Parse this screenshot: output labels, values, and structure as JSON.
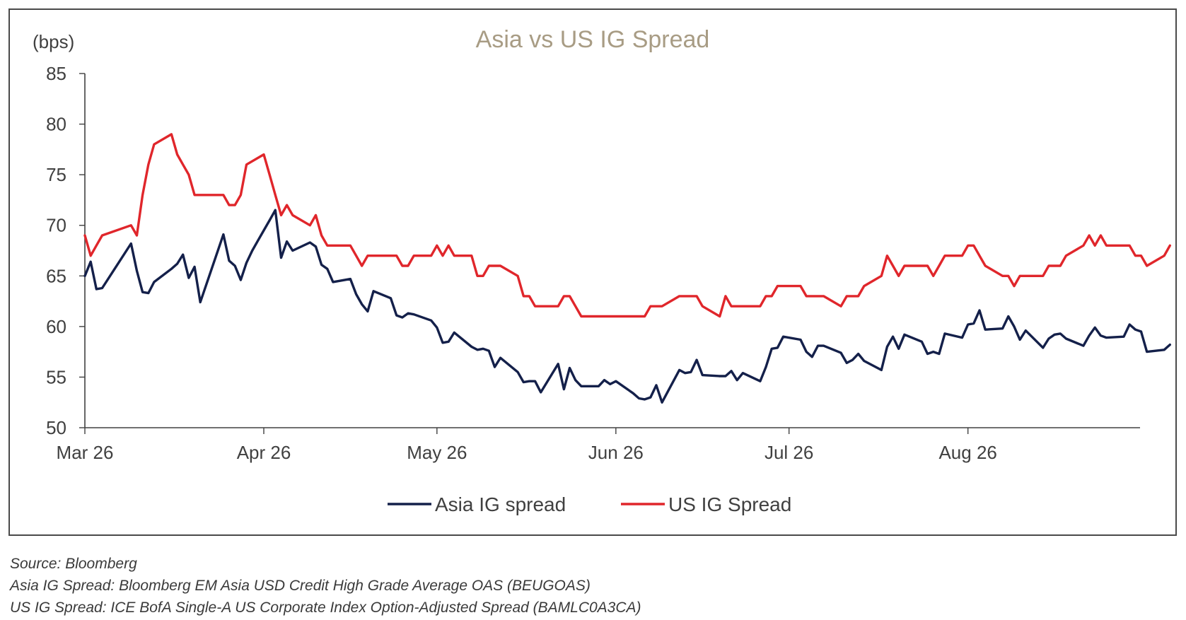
{
  "chart_data": {
    "type": "line",
    "title": "Asia vs US IG Spread",
    "ylabel": "(bps)",
    "xlabel": "",
    "ylim": [
      50,
      85
    ],
    "yticks": [
      "50",
      "55",
      "60",
      "65",
      "70",
      "75",
      "80",
      "85"
    ],
    "x_ticks": [
      {
        "label": "Mar 26",
        "date": "2026-03-01"
      },
      {
        "label": "Apr 26",
        "date": "2026-04-01"
      },
      {
        "label": "May 26",
        "date": "2026-05-01"
      },
      {
        "label": "Jun 26",
        "date": "2026-06-01"
      },
      {
        "label": "Jul 26",
        "date": "2026-07-01"
      },
      {
        "label": "Aug 26",
        "date": "2026-08-01"
      }
    ],
    "xlim": [
      "2026-03-01",
      "2026-08-30"
    ],
    "grid": false,
    "legend_position": "bottom",
    "series": [
      {
        "name": "Asia IG spread",
        "color": "#14204a",
        "points": [
          [
            "2026-03-01",
            65.0
          ],
          [
            "2026-03-02",
            66.4
          ],
          [
            "2026-03-03",
            63.7
          ],
          [
            "2026-03-04",
            63.8
          ],
          [
            "2026-03-09",
            68.2
          ],
          [
            "2026-03-10",
            65.5
          ],
          [
            "2026-03-11",
            63.4
          ],
          [
            "2026-03-12",
            63.3
          ],
          [
            "2026-03-13",
            64.4
          ],
          [
            "2026-03-16",
            65.7
          ],
          [
            "2026-03-17",
            66.2
          ],
          [
            "2026-03-18",
            67.1
          ],
          [
            "2026-03-19",
            64.8
          ],
          [
            "2026-03-20",
            65.9
          ],
          [
            "2026-03-21",
            62.4
          ],
          [
            "2026-03-25",
            69.1
          ],
          [
            "2026-03-26",
            66.5
          ],
          [
            "2026-03-27",
            66.0
          ],
          [
            "2026-03-28",
            64.6
          ],
          [
            "2026-03-29",
            66.3
          ],
          [
            "2026-03-30",
            67.5
          ],
          [
            "2026-03-31",
            68.5
          ],
          [
            "2026-04-01",
            69.5
          ],
          [
            "2026-04-02",
            70.5
          ],
          [
            "2026-04-03",
            71.5
          ],
          [
            "2026-04-04",
            66.8
          ],
          [
            "2026-04-05",
            68.4
          ],
          [
            "2026-04-06",
            67.5
          ],
          [
            "2026-04-09",
            68.3
          ],
          [
            "2026-04-10",
            67.9
          ],
          [
            "2026-04-11",
            66.1
          ],
          [
            "2026-04-12",
            65.7
          ],
          [
            "2026-04-13",
            64.4
          ],
          [
            "2026-04-16",
            64.7
          ],
          [
            "2026-04-17",
            63.2
          ],
          [
            "2026-04-18",
            62.2
          ],
          [
            "2026-04-19",
            61.5
          ],
          [
            "2026-04-20",
            63.5
          ],
          [
            "2026-04-23",
            62.8
          ],
          [
            "2026-04-24",
            61.1
          ],
          [
            "2026-04-25",
            60.9
          ],
          [
            "2026-04-26",
            61.3
          ],
          [
            "2026-04-27",
            61.2
          ],
          [
            "2026-04-30",
            60.6
          ],
          [
            "2026-05-01",
            59.9
          ],
          [
            "2026-05-02",
            58.4
          ],
          [
            "2026-05-03",
            58.5
          ],
          [
            "2026-05-04",
            59.4
          ],
          [
            "2026-05-07",
            58.0
          ],
          [
            "2026-05-08",
            57.7
          ],
          [
            "2026-05-09",
            57.8
          ],
          [
            "2026-05-10",
            57.6
          ],
          [
            "2026-05-11",
            56.0
          ],
          [
            "2026-05-12",
            56.9
          ],
          [
            "2026-05-15",
            55.5
          ],
          [
            "2026-05-16",
            54.5
          ],
          [
            "2026-05-17",
            54.6
          ],
          [
            "2026-05-18",
            54.6
          ],
          [
            "2026-05-19",
            53.5
          ],
          [
            "2026-05-22",
            56.3
          ],
          [
            "2026-05-23",
            53.8
          ],
          [
            "2026-05-24",
            55.9
          ],
          [
            "2026-05-25",
            54.7
          ],
          [
            "2026-05-26",
            54.1
          ],
          [
            "2026-05-29",
            54.1
          ],
          [
            "2026-05-30",
            54.7
          ],
          [
            "2026-05-31",
            54.3
          ],
          [
            "2026-06-01",
            54.6
          ],
          [
            "2026-06-04",
            53.4
          ],
          [
            "2026-06-05",
            52.9
          ],
          [
            "2026-06-06",
            52.8
          ],
          [
            "2026-06-07",
            53.0
          ],
          [
            "2026-06-08",
            54.2
          ],
          [
            "2026-06-09",
            52.5
          ],
          [
            "2026-06-12",
            55.7
          ],
          [
            "2026-06-13",
            55.4
          ],
          [
            "2026-06-14",
            55.5
          ],
          [
            "2026-06-15",
            56.7
          ],
          [
            "2026-06-16",
            55.2
          ],
          [
            "2026-06-19",
            55.1
          ],
          [
            "2026-06-20",
            55.1
          ],
          [
            "2026-06-21",
            55.6
          ],
          [
            "2026-06-22",
            54.7
          ],
          [
            "2026-06-23",
            55.4
          ],
          [
            "2026-06-26",
            54.6
          ],
          [
            "2026-06-27",
            56.0
          ],
          [
            "2026-06-28",
            57.8
          ],
          [
            "2026-06-29",
            57.9
          ],
          [
            "2026-06-30",
            59.0
          ],
          [
            "2026-07-03",
            58.7
          ],
          [
            "2026-07-04",
            57.5
          ],
          [
            "2026-07-05",
            57.0
          ],
          [
            "2026-07-06",
            58.1
          ],
          [
            "2026-07-07",
            58.1
          ],
          [
            "2026-07-10",
            57.4
          ],
          [
            "2026-07-11",
            56.4
          ],
          [
            "2026-07-12",
            56.7
          ],
          [
            "2026-07-13",
            57.3
          ],
          [
            "2026-07-14",
            56.6
          ],
          [
            "2026-07-17",
            55.7
          ],
          [
            "2026-07-18",
            58.0
          ],
          [
            "2026-07-19",
            59.0
          ],
          [
            "2026-07-20",
            57.8
          ],
          [
            "2026-07-21",
            59.2
          ],
          [
            "2026-07-24",
            58.5
          ],
          [
            "2026-07-25",
            57.3
          ],
          [
            "2026-07-26",
            57.5
          ],
          [
            "2026-07-27",
            57.3
          ],
          [
            "2026-07-28",
            59.3
          ],
          [
            "2026-07-31",
            58.9
          ],
          [
            "2026-08-01",
            60.2
          ],
          [
            "2026-08-02",
            60.3
          ],
          [
            "2026-08-03",
            61.6
          ],
          [
            "2026-08-04",
            59.7
          ],
          [
            "2026-08-07",
            59.8
          ],
          [
            "2026-08-08",
            61.0
          ],
          [
            "2026-08-09",
            60.0
          ],
          [
            "2026-08-10",
            58.7
          ],
          [
            "2026-08-11",
            59.6
          ],
          [
            "2026-08-14",
            57.9
          ],
          [
            "2026-08-15",
            58.8
          ],
          [
            "2026-08-16",
            59.2
          ],
          [
            "2026-08-17",
            59.3
          ],
          [
            "2026-08-18",
            58.8
          ],
          [
            "2026-08-21",
            58.1
          ],
          [
            "2026-08-22",
            59.1
          ],
          [
            "2026-08-23",
            59.9
          ],
          [
            "2026-08-24",
            59.1
          ],
          [
            "2026-08-25",
            58.9
          ],
          [
            "2026-08-28",
            59.0
          ],
          [
            "2026-08-29",
            60.2
          ],
          [
            "2026-08-30",
            59.7
          ],
          [
            "2026-08-31",
            59.5
          ],
          [
            "2026-09-01",
            57.5
          ],
          [
            "2026-09-04",
            57.7
          ],
          [
            "2026-09-05",
            58.2
          ]
        ]
      },
      {
        "name": "US IG Spread",
        "color": "#e0262b",
        "points": [
          [
            "2026-03-01",
            69
          ],
          [
            "2026-03-02",
            67
          ],
          [
            "2026-03-03",
            68
          ],
          [
            "2026-03-04",
            69
          ],
          [
            "2026-03-09",
            70
          ],
          [
            "2026-03-10",
            69
          ],
          [
            "2026-03-11",
            73
          ],
          [
            "2026-03-12",
            76
          ],
          [
            "2026-03-13",
            78
          ],
          [
            "2026-03-16",
            79
          ],
          [
            "2026-03-17",
            77
          ],
          [
            "2026-03-18",
            76
          ],
          [
            "2026-03-19",
            75
          ],
          [
            "2026-03-20",
            73
          ],
          [
            "2026-03-21",
            73
          ],
          [
            "2026-03-25",
            73
          ],
          [
            "2026-03-26",
            72
          ],
          [
            "2026-03-27",
            72
          ],
          [
            "2026-03-28",
            73
          ],
          [
            "2026-03-29",
            76
          ],
          [
            "2026-04-01",
            77
          ],
          [
            "2026-04-02",
            75
          ],
          [
            "2026-04-03",
            73
          ],
          [
            "2026-04-04",
            71
          ],
          [
            "2026-04-05",
            72
          ],
          [
            "2026-04-06",
            71
          ],
          [
            "2026-04-09",
            70
          ],
          [
            "2026-04-10",
            71
          ],
          [
            "2026-04-11",
            69
          ],
          [
            "2026-04-12",
            68
          ],
          [
            "2026-04-13",
            68
          ],
          [
            "2026-04-16",
            68
          ],
          [
            "2026-04-17",
            67
          ],
          [
            "2026-04-18",
            66
          ],
          [
            "2026-04-19",
            67
          ],
          [
            "2026-04-20",
            67
          ],
          [
            "2026-04-23",
            67
          ],
          [
            "2026-04-24",
            67
          ],
          [
            "2026-04-25",
            66
          ],
          [
            "2026-04-26",
            66
          ],
          [
            "2026-04-27",
            67
          ],
          [
            "2026-04-30",
            67
          ],
          [
            "2026-05-01",
            68
          ],
          [
            "2026-05-02",
            67
          ],
          [
            "2026-05-03",
            68
          ],
          [
            "2026-05-04",
            67
          ],
          [
            "2026-05-07",
            67
          ],
          [
            "2026-05-08",
            65
          ],
          [
            "2026-05-09",
            65
          ],
          [
            "2026-05-10",
            66
          ],
          [
            "2026-05-11",
            66
          ],
          [
            "2026-05-12",
            66
          ],
          [
            "2026-05-15",
            65
          ],
          [
            "2026-05-16",
            63
          ],
          [
            "2026-05-17",
            63
          ],
          [
            "2026-05-18",
            62
          ],
          [
            "2026-05-19",
            62
          ],
          [
            "2026-05-22",
            62
          ],
          [
            "2026-05-23",
            63
          ],
          [
            "2026-05-24",
            63
          ],
          [
            "2026-05-25",
            62
          ],
          [
            "2026-05-26",
            61
          ],
          [
            "2026-05-29",
            61
          ],
          [
            "2026-05-30",
            61
          ],
          [
            "2026-05-31",
            61
          ],
          [
            "2026-06-01",
            61
          ],
          [
            "2026-06-04",
            61
          ],
          [
            "2026-06-05",
            61
          ],
          [
            "2026-06-06",
            61
          ],
          [
            "2026-06-07",
            62
          ],
          [
            "2026-06-08",
            62
          ],
          [
            "2026-06-09",
            62
          ],
          [
            "2026-06-12",
            63
          ],
          [
            "2026-06-13",
            63
          ],
          [
            "2026-06-14",
            63
          ],
          [
            "2026-06-15",
            63
          ],
          [
            "2026-06-16",
            62
          ],
          [
            "2026-06-19",
            61
          ],
          [
            "2026-06-20",
            63
          ],
          [
            "2026-06-21",
            62
          ],
          [
            "2026-06-22",
            62
          ],
          [
            "2026-06-23",
            62
          ],
          [
            "2026-06-26",
            62
          ],
          [
            "2026-06-27",
            63
          ],
          [
            "2026-06-28",
            63
          ],
          [
            "2026-06-29",
            64
          ],
          [
            "2026-06-30",
            64
          ],
          [
            "2026-07-03",
            64
          ],
          [
            "2026-07-04",
            63
          ],
          [
            "2026-07-05",
            63
          ],
          [
            "2026-07-06",
            63
          ],
          [
            "2026-07-07",
            63
          ],
          [
            "2026-07-10",
            62
          ],
          [
            "2026-07-11",
            63
          ],
          [
            "2026-07-12",
            63
          ],
          [
            "2026-07-13",
            63
          ],
          [
            "2026-07-14",
            64
          ],
          [
            "2026-07-17",
            65
          ],
          [
            "2026-07-18",
            67
          ],
          [
            "2026-07-19",
            66
          ],
          [
            "2026-07-20",
            65
          ],
          [
            "2026-07-21",
            66
          ],
          [
            "2026-07-24",
            66
          ],
          [
            "2026-07-25",
            66
          ],
          [
            "2026-07-26",
            65
          ],
          [
            "2026-07-27",
            66
          ],
          [
            "2026-07-28",
            67
          ],
          [
            "2026-07-31",
            67
          ],
          [
            "2026-08-01",
            68
          ],
          [
            "2026-08-02",
            68
          ],
          [
            "2026-08-03",
            67
          ],
          [
            "2026-08-04",
            66
          ],
          [
            "2026-08-07",
            65
          ],
          [
            "2026-08-08",
            65
          ],
          [
            "2026-08-09",
            64
          ],
          [
            "2026-08-10",
            65
          ],
          [
            "2026-08-11",
            65
          ],
          [
            "2026-08-14",
            65
          ],
          [
            "2026-08-15",
            66
          ],
          [
            "2026-08-16",
            66
          ],
          [
            "2026-08-17",
            66
          ],
          [
            "2026-08-18",
            67
          ],
          [
            "2026-08-21",
            68
          ],
          [
            "2026-08-22",
            69
          ],
          [
            "2026-08-23",
            68
          ],
          [
            "2026-08-24",
            69
          ],
          [
            "2026-08-25",
            68
          ],
          [
            "2026-08-28",
            68
          ],
          [
            "2026-08-29",
            68
          ],
          [
            "2026-08-30",
            67
          ],
          [
            "2026-08-31",
            67
          ],
          [
            "2026-09-01",
            66
          ],
          [
            "2026-09-04",
            67
          ],
          [
            "2026-09-05",
            68
          ]
        ]
      }
    ]
  },
  "notes": {
    "source": "Source: Bloomberg",
    "asia_def": "Asia IG Spread: Bloomberg EM Asia USD Credit High Grade Average OAS (BEUGOAS)",
    "us_def": "US IG Spread: ICE BofA Single-A US Corporate Index Option-Adjusted Spread (BAMLC0A3CA)"
  },
  "colors": {
    "title": "#a89c84",
    "axis": "#404040",
    "frame": "#4a4a4a"
  }
}
